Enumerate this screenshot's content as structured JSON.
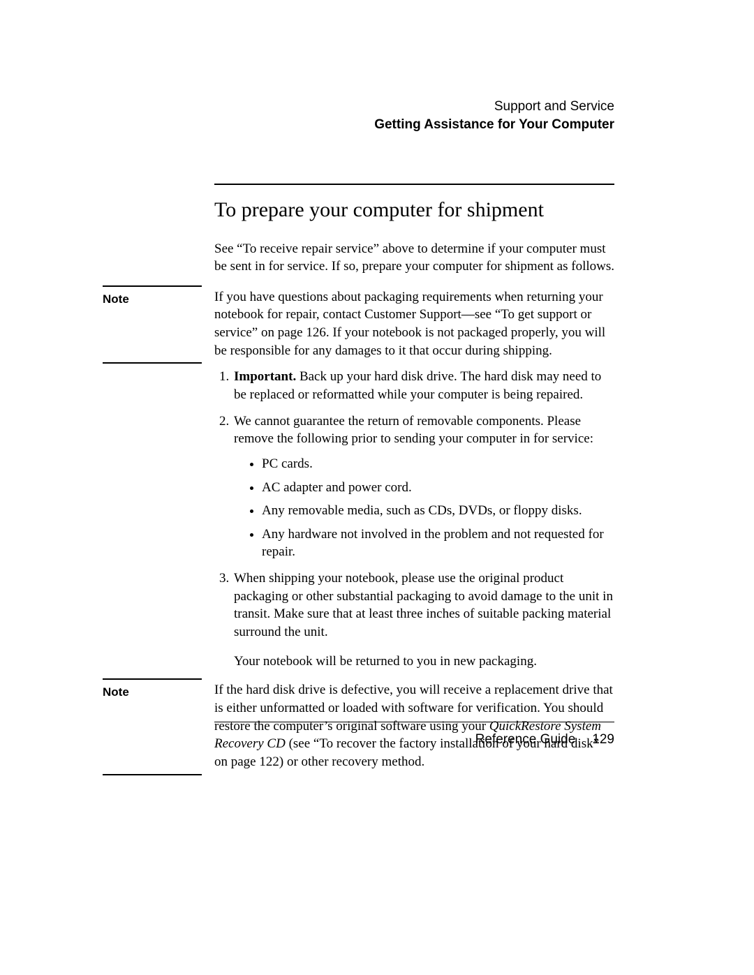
{
  "header": {
    "chapter": "Support and Service",
    "section": "Getting Assistance for Your Computer"
  },
  "title": "To prepare your computer for shipment",
  "intro": "See “To receive repair service” above to determine if your computer must be sent in for service. If so, prepare your computer for shipment as follows.",
  "notes": [
    {
      "label": "Note",
      "text": "If you have questions about packaging requirements when returning your notebook for repair, contact Customer Support—see “To get support or service” on page 126. If your notebook is not packaged properly, you will be responsible for any damages to it that occur during shipping."
    },
    {
      "label": "Note",
      "text_before_italic": "If the hard disk drive is defective, you will receive a replacement drive that is either unformatted or loaded with software for verification. You should restore the computer’s original software using your ",
      "italic": "QuickRestore System Recovery CD",
      "text_after_italic": " (see “To recover the factory installation of your hard disk” on page 122) or other recovery method."
    }
  ],
  "steps": [
    {
      "bold_lead": "Important.",
      "text": " Back up your hard disk drive. The hard disk may need to be replaced or reformatted while your computer is being repaired."
    },
    {
      "text": "We cannot guarantee the return of removable components. Please remove the following prior to sending your computer in for service:",
      "bullets": [
        "PC cards.",
        "AC adapter and power cord.",
        "Any removable media, such as CDs, DVDs, or floppy disks.",
        "Any hardware not involved in the problem and not requested for repair."
      ]
    },
    {
      "text": "When shipping your notebook, please use the original product packaging or other substantial packaging to avoid damage to the unit in transit. Make sure that at least three inches of suitable packing material surround the unit."
    }
  ],
  "trailing_para": "Your notebook will be returned to you in new packaging.",
  "footer": {
    "doc_title": "Reference Guide",
    "page_number": "129"
  }
}
